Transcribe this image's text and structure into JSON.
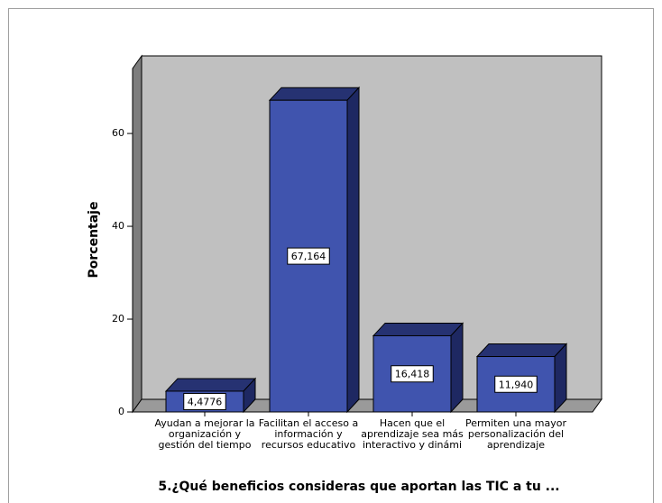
{
  "chart_data": {
    "type": "bar3d",
    "categories": [
      "Ayudan a mejorar la organización y gestión del tiempo",
      "Facilitan el acceso a información y recursos educativo",
      "Hacen que el aprendizaje sea más interactivo y dinámi",
      "Permiten una mayor personalización del aprendizaje"
    ],
    "values": [
      4.4776,
      67.164,
      16.418,
      11.94
    ],
    "value_labels": [
      "4,4776",
      "67,164",
      "16,418",
      "11,940"
    ],
    "color": "#4054ae",
    "ylabel": "Porcentaje",
    "xlabel": "5.¿Qué beneficios consideras que aportan las TIC a tu ...",
    "ylim": [
      0,
      74
    ],
    "yticks": [
      0,
      20,
      40,
      60
    ],
    "grid": false
  }
}
